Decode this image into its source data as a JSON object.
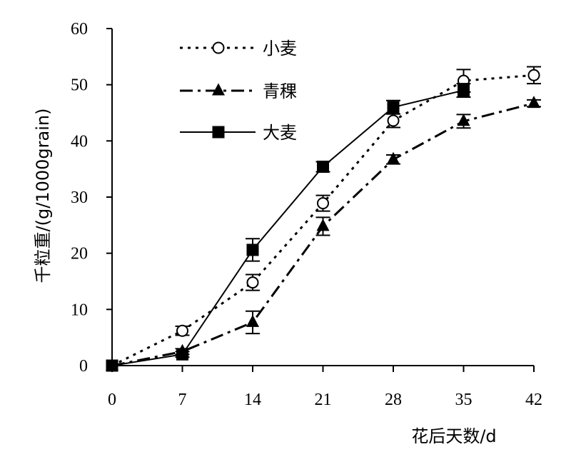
{
  "chart_data": {
    "type": "line",
    "x": [
      0,
      7,
      14,
      21,
      28,
      35,
      42
    ],
    "xlabel": "花后天数/d",
    "ylabel": "千粒重/(g/1000grain)",
    "xlim": [
      0,
      42
    ],
    "ylim": [
      0,
      60
    ],
    "xticks": [
      0,
      7,
      14,
      21,
      28,
      35,
      42
    ],
    "yticks": [
      0,
      10,
      20,
      30,
      40,
      50,
      60
    ],
    "grid": false,
    "legend_position": "top-left",
    "series": [
      {
        "name": "小麦",
        "marker": "open-circle",
        "line_style": "dotted",
        "color": "#000000",
        "x": [
          0,
          7,
          14,
          21,
          28,
          35,
          42
        ],
        "values": [
          0,
          6.2,
          14.8,
          28.9,
          43.6,
          50.7,
          51.7
        ],
        "errors": [
          0,
          0.8,
          1.4,
          1.4,
          1.2,
          2.0,
          1.5
        ]
      },
      {
        "name": "青稞",
        "marker": "filled-triangle",
        "line_style": "dash-dot",
        "color": "#000000",
        "x": [
          0,
          7,
          14,
          21,
          28,
          35,
          42
        ],
        "values": [
          0,
          2.5,
          7.7,
          24.8,
          36.7,
          43.5,
          46.7
        ],
        "errors": [
          0,
          0.5,
          2.0,
          1.6,
          0.8,
          1.2,
          0.6
        ]
      },
      {
        "name": "大麦",
        "marker": "filled-square",
        "line_style": "solid",
        "color": "#000000",
        "x": [
          0,
          7,
          14,
          21,
          28,
          35
        ],
        "values": [
          0,
          2.0,
          20.6,
          35.4,
          46.0,
          49.0
        ],
        "errors": [
          0,
          0.5,
          2.0,
          0.9,
          1.2,
          1.2
        ]
      }
    ]
  }
}
